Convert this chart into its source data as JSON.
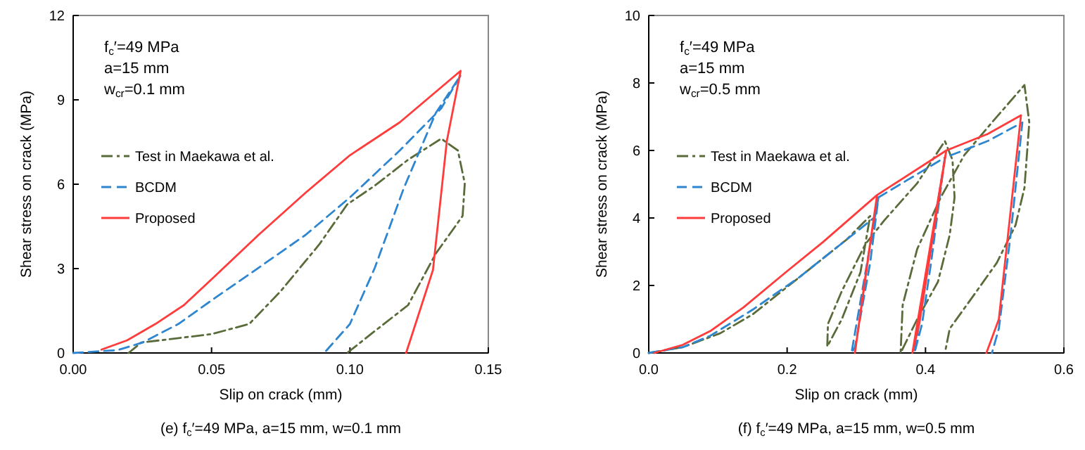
{
  "chart_data": [
    {
      "type": "line",
      "title": "(e) f$_{c}$′=49 MPa, a=15 mm, w=0.1 mm",
      "xlabel": "Slip on crack (mm)",
      "ylabel": "Shear stress on crack (MPa)",
      "annotations": [
        "f$_{c}$′=49 MPa",
        "a=15 mm",
        "w$_{cr}$=0.1 mm"
      ],
      "xlim": [
        0,
        0.15
      ],
      "xticks": [
        {
          "value": 0,
          "label": "0.00"
        },
        {
          "value": 0.05,
          "label": "0.05"
        },
        {
          "value": 0.1,
          "label": "0.10"
        },
        {
          "value": 0.15,
          "label": "0.15"
        }
      ],
      "ylim": [
        0,
        12
      ],
      "yticks": [
        0,
        3,
        6,
        9,
        12
      ],
      "grid": false,
      "legend": "left",
      "marker": "none",
      "series": [
        {
          "name": "Test in Maekawa et al.",
          "color": "#5a6b3a",
          "line_style": "dashdot",
          "x": [
            0.02,
            0.0246,
            0.05,
            0.0636,
            0.075,
            0.089,
            0.099,
            0.109,
            0.121,
            0.133,
            0.139,
            0.1415,
            0.1407,
            0.131,
            0.121,
            0.109,
            0.099
          ],
          "values": [
            0,
            0.37,
            0.67,
            1.03,
            2.2,
            3.87,
            5.28,
            5.95,
            6.87,
            7.62,
            7.2,
            6.03,
            4.87,
            3.53,
            1.7,
            0.78,
            0
          ]
        },
        {
          "name": "BCDM",
          "color": "#2e86d1",
          "line_style": "dashed",
          "x": [
            0,
            0.016,
            0.025,
            0.038,
            0.05,
            0.067,
            0.084,
            0.1,
            0.118,
            0.133,
            0.14,
            0.131,
            0.1195,
            0.109,
            0.1,
            0.0907
          ],
          "values": [
            0,
            0.1,
            0.37,
            1.03,
            1.87,
            3.03,
            4.2,
            5.53,
            7.2,
            8.7,
            9.87,
            8.53,
            5.87,
            3.03,
            1.03,
            0
          ]
        },
        {
          "name": "Proposed",
          "color": "#ff3b3b",
          "line_style": "solid",
          "x": [
            0.0102,
            0.0195,
            0.0297,
            0.04,
            0.05,
            0.067,
            0.084,
            0.1,
            0.118,
            0.14,
            0.135,
            0.13,
            0.1203
          ],
          "values": [
            0.12,
            0.45,
            1.03,
            1.7,
            2.62,
            4.2,
            5.7,
            7.03,
            8.2,
            10.03,
            7.53,
            2.95,
            0
          ]
        }
      ]
    },
    {
      "type": "line",
      "title": "(f) f$_{c}$′=49 MPa, a=15 mm, w=0.5 mm",
      "xlabel": "Slip on crack (mm)",
      "ylabel": "Shear stress on crack (MPa)",
      "annotations": [
        "f$_{c}$′=49 MPa",
        "a=15 mm",
        "w$_{cr}$=0.5 mm"
      ],
      "xlim": [
        0,
        0.6
      ],
      "xticks": [
        {
          "value": 0,
          "label": "0.0"
        },
        {
          "value": 0.2,
          "label": "0.2"
        },
        {
          "value": 0.4,
          "label": "0.4"
        },
        {
          "value": 0.6,
          "label": "0.6"
        }
      ],
      "ylim": [
        0,
        10
      ],
      "yticks": [
        0,
        2,
        4,
        6,
        8,
        10
      ],
      "grid": false,
      "legend": "left",
      "marker": "none",
      "series": [
        {
          "name": "Test in Maekawa et al.",
          "color": "#5a6b3a",
          "line_style": "dashdot",
          "x": [
            0,
            0.049,
            0.103,
            0.15,
            0.218,
            0.286,
            0.32,
            0.306,
            0.279,
            0.258,
            0.259,
            0.279,
            0.313,
            0.34,
            0.388,
            0.428,
            0.439,
            0.442,
            0.435,
            0.418,
            0.388,
            0.364,
            0.367,
            0.388,
            0.422,
            0.456,
            0.496,
            0.543,
            0.55,
            0.543,
            0.53,
            0.503,
            0.469,
            0.435,
            0.428
          ],
          "values": [
            0,
            0.17,
            0.58,
            1.14,
            2.25,
            3.36,
            4.06,
            2.39,
            1.0,
            0.19,
            0.86,
            1.83,
            3.22,
            3.92,
            5.03,
            6.28,
            5.72,
            4.61,
            3.5,
            2.11,
            1.0,
            0,
            1.42,
            3.08,
            4.61,
            5.86,
            6.83,
            7.94,
            6.83,
            4.89,
            3.78,
            2.67,
            1.69,
            0.72,
            0
          ]
        },
        {
          "name": "BCDM",
          "color": "#2e86d1",
          "line_style": "dashed",
          "x": [
            0,
            0.049,
            0.089,
            0.15,
            0.218,
            0.286,
            0.327,
            0.332,
            0.32,
            0.298,
            0.293,
            0.332,
            0.428,
            0.408,
            0.395,
            0.384,
            0.428,
            0.49,
            0.54,
            0.523,
            0.506,
            0.496
          ],
          "values": [
            0,
            0.17,
            0.51,
            1.28,
            2.25,
            3.36,
            4.03,
            4.61,
            2.67,
            0.17,
            0,
            4.61,
            5.79,
            2.67,
            0.86,
            0,
            5.79,
            6.28,
            6.83,
            3.5,
            0.72,
            0
          ]
        },
        {
          "name": "Proposed",
          "color": "#ff3b3b",
          "line_style": "solid",
          "x": [
            0.008,
            0.049,
            0.089,
            0.137,
            0.198,
            0.252,
            0.33,
            0.313,
            0.298,
            0.33,
            0.43,
            0.391,
            0.381,
            0.43,
            0.49,
            0.538,
            0.506,
            0.488
          ],
          "values": [
            0,
            0.24,
            0.65,
            1.35,
            2.39,
            3.29,
            4.68,
            2.25,
            0,
            4.68,
            6.0,
            0.86,
            0,
            6.0,
            6.49,
            7.04,
            1.0,
            0
          ]
        }
      ]
    }
  ]
}
